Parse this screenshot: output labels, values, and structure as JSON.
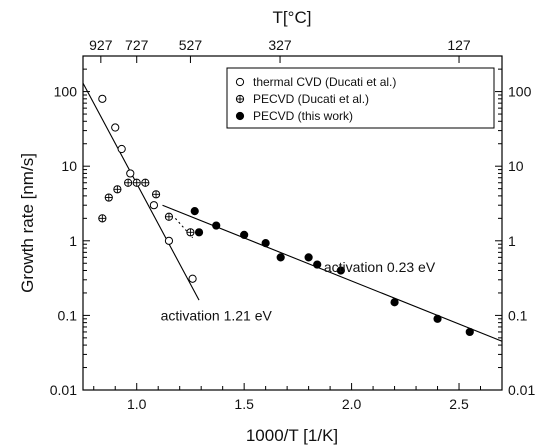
{
  "chart_data": {
    "type": "scatter",
    "xlabel": "1000/T [1/K]",
    "ylabel": "Growth rate [nm/s]",
    "top_axis_label": "T[°C]",
    "xlim": [
      0.75,
      2.7
    ],
    "ylim": [
      0.01,
      300
    ],
    "y_scale": "log",
    "grid": false,
    "x_ticks": [
      1.0,
      1.5,
      2.0,
      2.5
    ],
    "x_tick_labels": [
      "1.0",
      "1.5",
      "2.0",
      "2.5"
    ],
    "y_ticks": [
      0.01,
      0.1,
      1,
      10,
      100
    ],
    "y_tick_labels": [
      "0.01",
      "0.1",
      "1",
      "10",
      "100"
    ],
    "top_ticks": [
      {
        "label": "927",
        "x": 0.833
      },
      {
        "label": "727",
        "x": 1.0
      },
      {
        "label": "527",
        "x": 1.25
      },
      {
        "label": "327",
        "x": 1.667
      },
      {
        "label": "127",
        "x": 2.5
      }
    ],
    "legend_position": "top-right",
    "series": [
      {
        "name": "thermal CVD (Ducati et al.)",
        "marker": "open-circle",
        "points": [
          [
            0.84,
            80
          ],
          [
            0.9,
            33
          ],
          [
            0.93,
            17
          ],
          [
            0.97,
            8
          ],
          [
            1.08,
            3.0
          ],
          [
            1.15,
            1.0
          ],
          [
            1.26,
            0.31
          ]
        ]
      },
      {
        "name": "PECVD (Ducati et al.)",
        "marker": "crossed-circle",
        "points": [
          [
            0.84,
            2.0
          ],
          [
            0.87,
            3.8
          ],
          [
            0.91,
            4.9
          ],
          [
            0.96,
            6.0
          ],
          [
            1.0,
            6.0
          ],
          [
            1.04,
            6.0
          ],
          [
            1.09,
            4.2
          ],
          [
            1.15,
            2.1
          ],
          [
            1.25,
            1.3
          ]
        ]
      },
      {
        "name": "PECVD (this work)",
        "marker": "filled-circle",
        "points": [
          [
            1.27,
            2.5
          ],
          [
            1.29,
            1.3
          ],
          [
            1.37,
            1.6
          ],
          [
            1.5,
            1.2
          ],
          [
            1.6,
            0.93
          ],
          [
            1.67,
            0.6
          ],
          [
            1.8,
            0.6
          ],
          [
            1.84,
            0.48
          ],
          [
            1.95,
            0.4
          ],
          [
            2.2,
            0.15
          ],
          [
            2.4,
            0.09
          ],
          [
            2.55,
            0.06
          ]
        ]
      }
    ],
    "fit_lines": [
      {
        "from": [
          0.75,
          130
        ],
        "to": [
          1.29,
          0.16
        ],
        "style": "solid"
      },
      {
        "from": [
          1.12,
          3.0
        ],
        "to": [
          2.7,
          0.045
        ],
        "style": "solid"
      },
      {
        "from": [
          1.18,
          2.0
        ],
        "to": [
          1.26,
          1.1
        ],
        "style": "dotted"
      }
    ],
    "annotations": [
      {
        "text": "activation 1.21 eV",
        "x": 1.37,
        "y": 0.085
      },
      {
        "text": "activation 0.23 eV",
        "x": 2.13,
        "y": 0.38
      }
    ]
  }
}
